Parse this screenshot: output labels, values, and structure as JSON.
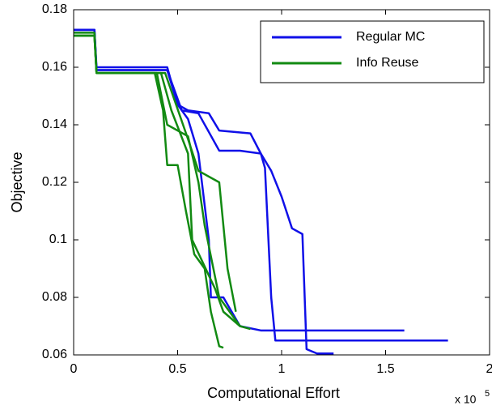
{
  "chart_data": {
    "type": "line",
    "xlabel": "Computational Effort",
    "ylabel": "Objective",
    "x_multiplier": {
      "base": "x 10",
      "exponent": "5"
    },
    "xlim": [
      0,
      2
    ],
    "xticks": [
      0,
      0.5,
      1,
      1.5,
      2
    ],
    "ylim": [
      0.06,
      0.18
    ],
    "yticks": [
      0.06,
      0.08,
      0.1,
      0.12,
      0.14,
      0.16,
      0.18
    ],
    "legend": "upper right",
    "series": [
      {
        "name": "Regular MC",
        "color": "#1010e8",
        "runs": [
          {
            "x": [
              0,
              0.1,
              0.11,
              0.45,
              0.5,
              0.55,
              0.65,
              0.7,
              0.85,
              0.9,
              0.95,
              1.0,
              1.05,
              1.1,
              1.12,
              1.17,
              1.25
            ],
            "y": [
              0.173,
              0.173,
              0.16,
              0.16,
              0.147,
              0.145,
              0.144,
              0.138,
              0.137,
              0.13,
              0.124,
              0.115,
              0.104,
              0.102,
              0.062,
              0.0605,
              0.0605
            ]
          },
          {
            "x": [
              0,
              0.1,
              0.11,
              0.45,
              0.52,
              0.6,
              0.7,
              0.8,
              0.9,
              0.92,
              0.93,
              0.95,
              0.97,
              1.8
            ],
            "y": [
              0.173,
              0.173,
              0.159,
              0.159,
              0.145,
              0.144,
              0.131,
              0.131,
              0.13,
              0.125,
              0.11,
              0.08,
              0.065,
              0.065
            ]
          },
          {
            "x": [
              0,
              0.1,
              0.11,
              0.45,
              0.5,
              0.55,
              0.6,
              0.65,
              0.66,
              0.72,
              0.8,
              0.9,
              1.59
            ],
            "y": [
              0.173,
              0.173,
              0.159,
              0.159,
              0.147,
              0.142,
              0.13,
              0.1,
              0.08,
              0.08,
              0.07,
              0.0685,
              0.0685
            ]
          }
        ]
      },
      {
        "name": "Info Reuse",
        "color": "#128a12",
        "runs": [
          {
            "x": [
              0,
              0.1,
              0.11,
              0.39,
              0.43,
              0.45,
              0.5,
              0.54,
              0.58,
              0.63,
              0.66,
              0.7,
              0.72
            ],
            "y": [
              0.171,
              0.171,
              0.158,
              0.158,
              0.145,
              0.126,
              0.126,
              0.11,
              0.095,
              0.09,
              0.075,
              0.063,
              0.0625
            ]
          },
          {
            "x": [
              0,
              0.1,
              0.11,
              0.4,
              0.45,
              0.55,
              0.6,
              0.63,
              0.7,
              0.75,
              0.8,
              0.85
            ],
            "y": [
              0.172,
              0.172,
              0.158,
              0.158,
              0.14,
              0.136,
              0.12,
              0.105,
              0.08,
              0.075,
              0.07,
              0.069
            ]
          },
          {
            "x": [
              0,
              0.1,
              0.11,
              0.42,
              0.47,
              0.55,
              0.57,
              0.68,
              0.72,
              0.8
            ],
            "y": [
              0.171,
              0.171,
              0.158,
              0.158,
              0.145,
              0.13,
              0.1,
              0.083,
              0.075,
              0.07
            ]
          },
          {
            "x": [
              0,
              0.1,
              0.11,
              0.44,
              0.55,
              0.6,
              0.7,
              0.74,
              0.78
            ],
            "y": [
              0.171,
              0.171,
              0.158,
              0.158,
              0.135,
              0.124,
              0.12,
              0.09,
              0.075
            ]
          }
        ]
      }
    ]
  }
}
